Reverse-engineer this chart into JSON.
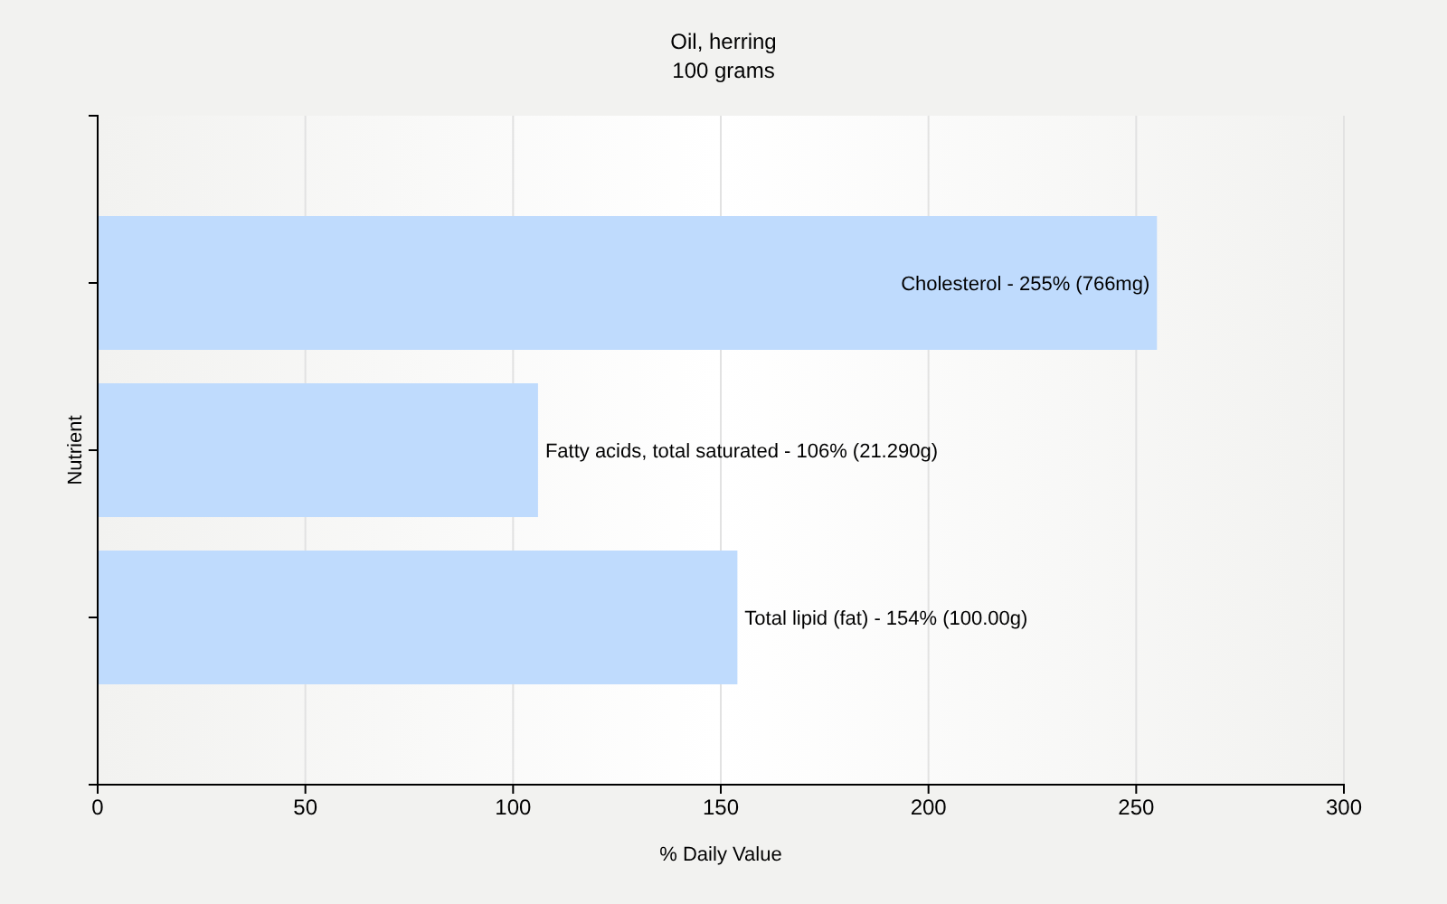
{
  "chart_data": {
    "type": "bar",
    "orientation": "horizontal",
    "title": "Oil, herring",
    "subtitle": "100 grams",
    "xlabel": "% Daily Value",
    "ylabel": "Nutrient",
    "categories": [
      null,
      null,
      null
    ],
    "values": [
      255,
      106,
      154
    ],
    "annotations": [
      {
        "text": "Cholesterol - 255% (766mg)",
        "x": 255
      },
      {
        "text": "Fatty acids, total saturated - 106% (21.290g)",
        "x": 106
      },
      {
        "text": "Total lipid (fat) - 154% (100.00g)",
        "x": 154
      }
    ],
    "color": "#bfdbfd",
    "xlim": [
      0,
      300
    ],
    "xticks": [
      0,
      50,
      100,
      150,
      200,
      250,
      300
    ],
    "grid": "x",
    "tick_labels": "x",
    "legend": false
  }
}
